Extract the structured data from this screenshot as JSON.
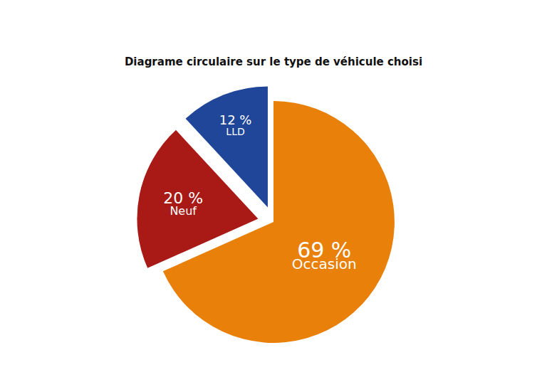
{
  "chart_data": {
    "type": "pie",
    "title": "Diagrame circulaire sur le type de véhicule choisi",
    "categories": [
      "Occasion",
      "Neuf",
      "LLD"
    ],
    "values": [
      69,
      20,
      12
    ],
    "value_labels": [
      "69 %",
      "20 %",
      "12 %"
    ],
    "colors": [
      "#e8800a",
      "#a91916",
      "#1f4699"
    ],
    "data_labels": true
  }
}
